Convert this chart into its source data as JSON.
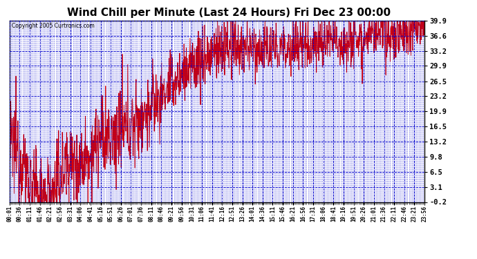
{
  "title": "Wind Chill per Minute (Last 24 Hours) Fri Dec 23 00:00",
  "title_fontsize": 11,
  "copyright_text": "Copyright 2005 Curtronics.com",
  "background_color": "#ffffff",
  "plot_bg_color": "#ffffff",
  "line_color": "#dd0000",
  "grid_color": "#0000cc",
  "yticks": [
    -0.2,
    3.1,
    6.5,
    9.8,
    13.2,
    16.5,
    19.9,
    23.2,
    26.5,
    29.9,
    33.2,
    36.6,
    39.9
  ],
  "ylim_min": -0.2,
  "ylim_max": 39.9,
  "xtick_labels": [
    "00:01",
    "00:36",
    "01:11",
    "01:46",
    "02:21",
    "02:56",
    "03:31",
    "04:06",
    "04:41",
    "05:16",
    "05:51",
    "06:26",
    "07:01",
    "07:36",
    "08:11",
    "08:46",
    "09:21",
    "09:56",
    "10:31",
    "11:06",
    "11:41",
    "12:16",
    "12:51",
    "13:26",
    "14:01",
    "14:36",
    "15:11",
    "15:46",
    "16:21",
    "16:56",
    "17:31",
    "18:06",
    "18:41",
    "19:16",
    "19:51",
    "20:26",
    "21:01",
    "21:36",
    "22:11",
    "22:46",
    "23:21",
    "23:56"
  ],
  "line_width": 0.7,
  "noise_seed": 12345
}
